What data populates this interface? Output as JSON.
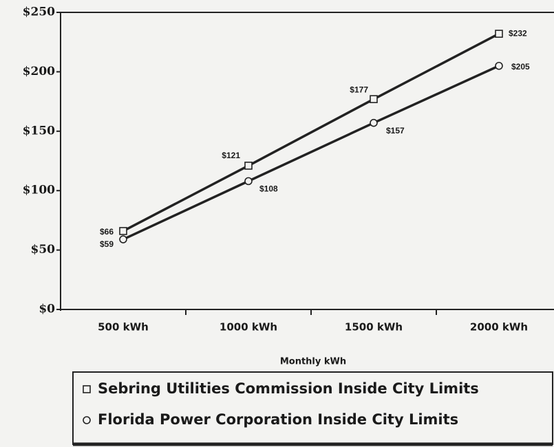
{
  "chart_data": {
    "type": "line",
    "x_label": "Monthly kWh",
    "categories": [
      "500 kWh",
      "1000 kWh",
      "1500 kWh",
      "2000 kWh"
    ],
    "series": [
      {
        "name": "Sebring Utilities Commission Inside City Limits",
        "color": "#222222",
        "marker": "square",
        "values": [
          66,
          121,
          177,
          232
        ],
        "value_labels": [
          "$66",
          "$121",
          "$177",
          "$232"
        ]
      },
      {
        "name": "Florida Power Corporation Inside City Limits",
        "color": "#222222",
        "marker": "circle",
        "values": [
          59,
          108,
          157,
          205
        ],
        "value_labels": [
          "$59",
          "$108",
          "$157",
          "$205"
        ]
      }
    ],
    "ylim": [
      0,
      250
    ],
    "yticks": [
      {
        "value": 0,
        "label": "$0"
      },
      {
        "value": 50,
        "label": "$50"
      },
      {
        "value": 100,
        "label": "$100"
      },
      {
        "value": 150,
        "label": "$150"
      },
      {
        "value": 200,
        "label": "$200"
      },
      {
        "value": 250,
        "label": "$250"
      }
    ]
  }
}
